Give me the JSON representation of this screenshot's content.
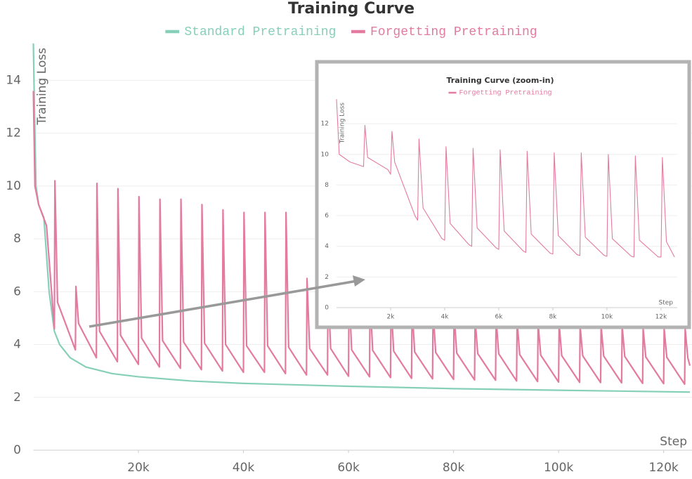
{
  "chart_data": [
    {
      "type": "line",
      "title": "Training Curve",
      "xlabel": "Step",
      "ylabel": "Training Loss",
      "xlim": [
        0,
        125400
      ],
      "ylim": [
        0,
        15.5
      ],
      "xticks": [
        {
          "value": 20000,
          "label": "20k"
        },
        {
          "value": 40000,
          "label": "40k"
        },
        {
          "value": 60000,
          "label": "60k"
        },
        {
          "value": 80000,
          "label": "80k"
        },
        {
          "value": 100000,
          "label": "100k"
        },
        {
          "value": 120000,
          "label": "120k"
        }
      ],
      "yticks": [
        0,
        2,
        4,
        6,
        8,
        10,
        12,
        14
      ],
      "grid": true,
      "legend": "top",
      "series": [
        {
          "name": "Standard Pretraining",
          "color": "#86cfb9",
          "x": [
            0,
            200,
            500,
            1000,
            2000,
            3000,
            4000,
            5000,
            7000,
            10000,
            15000,
            20000,
            30000,
            40000,
            60000,
            80000,
            100000,
            125000
          ],
          "values": [
            15.4,
            13,
            10,
            9.3,
            8.8,
            6,
            4.5,
            4,
            3.5,
            3.15,
            2.9,
            2.78,
            2.62,
            2.53,
            2.42,
            2.33,
            2.27,
            2.2
          ]
        },
        {
          "name": "Forgetting Pretraining",
          "color": "#e37aa0",
          "x": [
            0,
            300,
            1000,
            2500,
            4000,
            4100,
            4600,
            8000,
            8100,
            8600,
            12000,
            12100,
            12600,
            16000,
            16100,
            16600,
            20000,
            20100,
            20600,
            24000,
            24100,
            24600,
            28000,
            28100,
            28600,
            32000,
            32100,
            32600,
            36000,
            36100,
            36600,
            40000,
            40100,
            40600,
            44000,
            44100,
            44600,
            48000,
            48100,
            48600,
            52000,
            52100,
            52600,
            56000,
            56100,
            56600,
            60000,
            60100,
            60600,
            64000,
            64100,
            64600,
            68000,
            68100,
            68600,
            72000,
            72100,
            72600,
            76000,
            76100,
            76600,
            80000,
            80100,
            80600,
            84000,
            84100,
            84600,
            88000,
            88100,
            88600,
            92000,
            92100,
            92600,
            96000,
            96100,
            96600,
            100000,
            100100,
            100600,
            104000,
            104100,
            104600,
            108000,
            108100,
            108600,
            112000,
            112100,
            112600,
            116000,
            116100,
            116600,
            120000,
            120100,
            120600,
            124000,
            124100,
            124600,
            125000
          ],
          "values": [
            13.6,
            10,
            9.3,
            8.5,
            4.6,
            10.2,
            5.6,
            3.8,
            6.2,
            4.8,
            3.5,
            10.1,
            4.5,
            3.35,
            9.9,
            4.35,
            3.25,
            9.6,
            4.25,
            3.15,
            9.5,
            4.15,
            3.1,
            9.5,
            4.1,
            3.05,
            9.3,
            4.05,
            3.0,
            9.1,
            4.0,
            2.95,
            9.0,
            3.95,
            2.95,
            9.0,
            3.95,
            2.9,
            9.0,
            3.9,
            2.85,
            6.5,
            3.85,
            2.85,
            6.2,
            3.85,
            2.8,
            6.0,
            3.8,
            2.78,
            5.8,
            3.78,
            2.75,
            5.6,
            3.75,
            2.72,
            5.4,
            3.72,
            2.7,
            5.3,
            3.7,
            2.68,
            5.2,
            3.68,
            2.66,
            5.0,
            3.66,
            2.65,
            5.0,
            3.65,
            2.62,
            4.9,
            3.62,
            2.6,
            4.8,
            3.6,
            2.58,
            4.8,
            3.58,
            2.57,
            4.7,
            3.57,
            2.56,
            4.7,
            3.56,
            2.55,
            4.7,
            3.55,
            2.53,
            4.6,
            3.53,
            2.52,
            4.6,
            3.52,
            2.5,
            4.6,
            3.5,
            3.2
          ]
        }
      ]
    },
    {
      "type": "line",
      "title": "Training Curve (zoom-in)",
      "xlabel": "Step",
      "ylabel": "Training Loss",
      "xlim": [
        0,
        12600
      ],
      "ylim": [
        0,
        13.7
      ],
      "xticks": [
        {
          "value": 2000,
          "label": "2k"
        },
        {
          "value": 4000,
          "label": "4k"
        },
        {
          "value": 6000,
          "label": "6k"
        },
        {
          "value": 8000,
          "label": "8k"
        },
        {
          "value": 10000,
          "label": "10k"
        },
        {
          "value": 12000,
          "label": "12k"
        }
      ],
      "yticks": [
        0,
        2,
        4,
        6,
        8,
        10,
        12
      ],
      "grid": true,
      "legend": "top",
      "series": [
        {
          "name": "Forgetting Pretraining",
          "color": "#e37aa0",
          "x": [
            0,
            100,
            500,
            1000,
            1050,
            1150,
            1900,
            2000,
            2050,
            2150,
            2900,
            3000,
            3050,
            3200,
            3900,
            4000,
            4050,
            4200,
            4900,
            5000,
            5050,
            5200,
            5900,
            6000,
            6050,
            6200,
            6900,
            7000,
            7050,
            7200,
            7900,
            8000,
            8050,
            8200,
            8900,
            9000,
            9050,
            9200,
            9900,
            10000,
            10050,
            10200,
            10900,
            11000,
            11050,
            11200,
            11900,
            12000,
            12050,
            12200,
            12500
          ],
          "values": [
            13.6,
            10,
            9.5,
            9.2,
            11.9,
            9.8,
            9.0,
            8.7,
            11.5,
            9.5,
            6.0,
            5.7,
            11.0,
            6.5,
            4.5,
            4.4,
            10.5,
            5.5,
            4.1,
            4.0,
            10.4,
            5.2,
            3.9,
            3.8,
            10.3,
            5.0,
            3.7,
            3.6,
            10.2,
            4.8,
            3.55,
            3.5,
            10.1,
            4.7,
            3.45,
            3.4,
            10.1,
            4.6,
            3.4,
            3.35,
            10.0,
            4.5,
            3.35,
            3.3,
            9.9,
            4.4,
            3.3,
            3.3,
            9.8,
            4.3,
            3.3
          ]
        }
      ]
    }
  ]
}
